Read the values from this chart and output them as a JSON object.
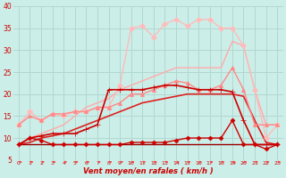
{
  "xlabel": "Vent moyen/en rafales ( km/h )",
  "bg_color": "#cceee8",
  "grid_color": "#b0d8d0",
  "xlim": [
    -0.5,
    23.5
  ],
  "ylim": [
    5,
    40
  ],
  "yticks": [
    5,
    10,
    15,
    20,
    25,
    30,
    35,
    40
  ],
  "xticks": [
    0,
    1,
    2,
    3,
    4,
    5,
    6,
    7,
    8,
    9,
    10,
    11,
    12,
    13,
    14,
    15,
    16,
    17,
    18,
    19,
    20,
    21,
    22,
    23
  ],
  "series": [
    {
      "x": [
        0,
        1,
        2,
        3,
        4,
        5,
        6,
        7,
        8,
        9,
        10,
        11,
        12,
        13,
        14,
        15,
        16,
        17,
        18,
        19,
        20,
        21,
        22,
        23
      ],
      "y": [
        8.5,
        8.5,
        8.5,
        8.5,
        8.5,
        8.5,
        8.5,
        8.5,
        8.5,
        8.5,
        8.5,
        8.5,
        8.5,
        8.5,
        8.5,
        8.5,
        8.5,
        8.5,
        8.5,
        8.5,
        8.5,
        8.5,
        8.5,
        8.5
      ],
      "color": "#990000",
      "lw": 1.0,
      "marker": null,
      "zorder": 3
    },
    {
      "x": [
        0,
        1,
        2,
        3,
        4,
        5,
        6,
        7,
        8,
        9,
        10,
        11,
        12,
        13,
        14,
        15,
        16,
        17,
        18,
        19,
        20,
        21,
        22,
        23
      ],
      "y": [
        8.5,
        10,
        9.5,
        8.5,
        8.5,
        8.5,
        8.5,
        8.5,
        8.5,
        8.5,
        9,
        9,
        9,
        9,
        9.5,
        10,
        10,
        10,
        10,
        14,
        8.5,
        8.5,
        7.5,
        8.5
      ],
      "color": "#cc0000",
      "lw": 1.0,
      "marker": "D",
      "ms": 2.5,
      "zorder": 4
    },
    {
      "x": [
        0,
        1,
        2,
        3,
        4,
        5,
        6,
        7,
        8,
        9,
        10,
        11,
        12,
        13,
        14,
        15,
        16,
        17,
        18,
        19,
        20,
        21,
        22,
        23
      ],
      "y": [
        8.5,
        10,
        10.5,
        11,
        11,
        11,
        12,
        13,
        21,
        21,
        21,
        21,
        21.5,
        22,
        22,
        21.5,
        21,
        21,
        21,
        20.5,
        14,
        8.5,
        8.5,
        8.5
      ],
      "color": "#cc0000",
      "lw": 1.2,
      "marker": "+",
      "ms": 5,
      "zorder": 5
    },
    {
      "x": [
        0,
        1,
        2,
        3,
        4,
        5,
        6,
        7,
        8,
        9,
        10,
        11,
        12,
        13,
        14,
        15,
        16,
        17,
        18,
        19,
        20,
        21,
        22,
        23
      ],
      "y": [
        8.5,
        9,
        10,
        10.5,
        11,
        12,
        13,
        14,
        15,
        16,
        17,
        18,
        18.5,
        19,
        19.5,
        20,
        20,
        20,
        20,
        20,
        19.5,
        14,
        9,
        8.5
      ],
      "color": "#dd2222",
      "lw": 1.2,
      "marker": null,
      "zorder": 2
    },
    {
      "x": [
        0,
        1,
        2,
        3,
        4,
        5,
        6,
        7,
        8,
        9,
        10,
        11,
        12,
        13,
        14,
        15,
        16,
        17,
        18,
        19,
        20,
        21,
        22,
        23
      ],
      "y": [
        13,
        15,
        14,
        15.5,
        15.5,
        16,
        16,
        17,
        17,
        18,
        20,
        20,
        21,
        22,
        23,
        22.5,
        21,
        21,
        22,
        26,
        21,
        13,
        13,
        13
      ],
      "color": "#ff8888",
      "lw": 1.0,
      "marker": "^",
      "ms": 3,
      "zorder": 3
    },
    {
      "x": [
        0,
        1,
        2,
        3,
        4,
        5,
        6,
        7,
        8,
        9,
        10,
        11,
        12,
        13,
        14,
        15,
        16,
        17,
        18,
        19,
        20,
        21,
        22,
        23
      ],
      "y": [
        8.5,
        10,
        11,
        12,
        13,
        15,
        17,
        18,
        19,
        21,
        22,
        23,
        24,
        25,
        26,
        26,
        26,
        26,
        26,
        32,
        31,
        21,
        13,
        13
      ],
      "color": "#ffaaaa",
      "lw": 1.0,
      "marker": null,
      "zorder": 2
    },
    {
      "x": [
        0,
        1,
        2,
        3,
        4,
        5,
        6,
        7,
        8,
        9,
        10,
        11,
        12,
        13,
        14,
        15,
        16,
        17,
        18,
        19,
        20,
        21,
        22,
        23
      ],
      "y": [
        13,
        16,
        14,
        15.5,
        15,
        16,
        16,
        17,
        17,
        22,
        35,
        35.5,
        33,
        36,
        37,
        35.5,
        37,
        37,
        35,
        35,
        31,
        21,
        10,
        13
      ],
      "color": "#ffbbbb",
      "lw": 1.0,
      "marker": "D",
      "ms": 3,
      "zorder": 2
    }
  ],
  "arrow_color": "#ee4444"
}
